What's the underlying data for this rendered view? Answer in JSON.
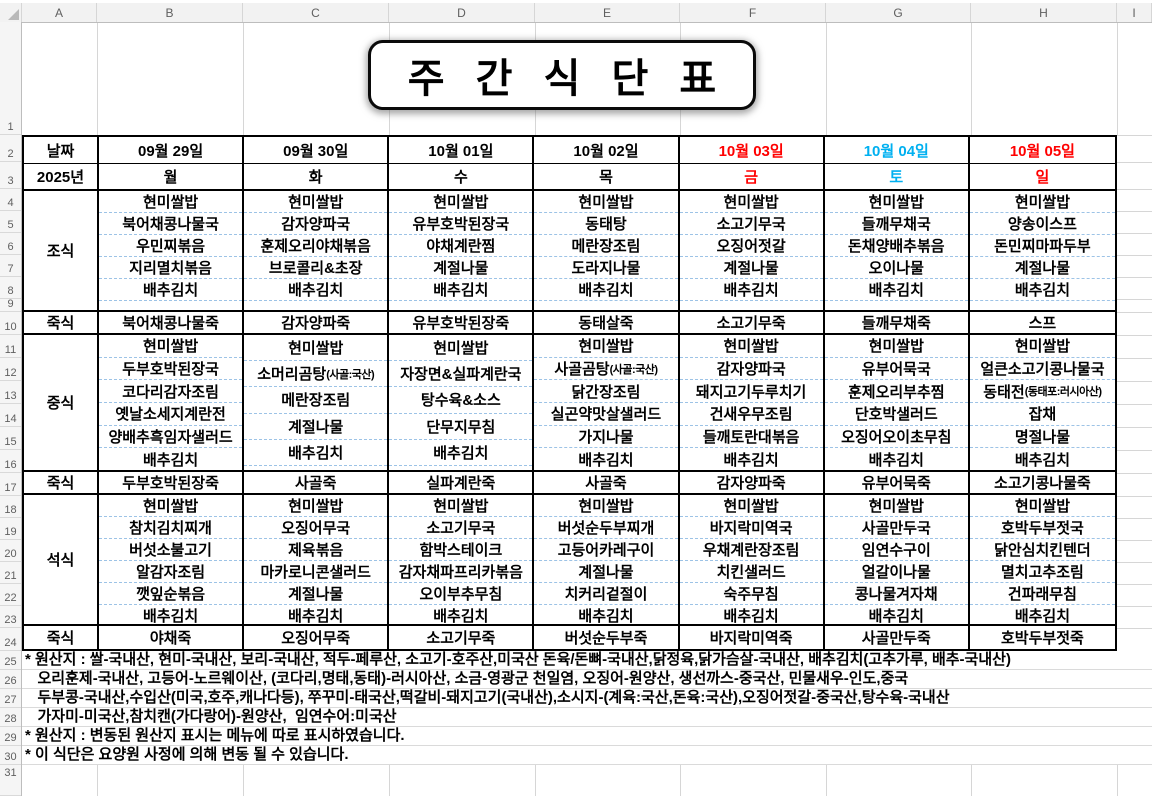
{
  "spreadsheet": {
    "column_letters": [
      "A",
      "B",
      "C",
      "D",
      "E",
      "F",
      "G",
      "H",
      "I"
    ],
    "row_numbers": [
      "1",
      "2",
      "3",
      "4",
      "5",
      "6",
      "7",
      "8",
      "9",
      "10",
      "11",
      "12",
      "13",
      "14",
      "15",
      "16",
      "17",
      "18",
      "19",
      "20",
      "21",
      "22",
      "23",
      "24",
      "25",
      "26",
      "27",
      "28",
      "29",
      "30",
      "31"
    ]
  },
  "title": "주 간 식 단 표",
  "header": {
    "date_label": "날짜",
    "year_label": "2025년"
  },
  "section_labels": {
    "breakfast": "조식",
    "porridge": "죽식",
    "lunch": "중식",
    "dinner": "석식"
  },
  "colors": {
    "weekday_text": "#000000",
    "holiday_red": "#ff0000",
    "saturday_blue": "#00b0f0",
    "dashed_divider": "#9dc3e6",
    "gridline": "#d6d6d6"
  },
  "days": [
    {
      "date": "09월 29일",
      "dow": "월",
      "color": "#000000",
      "breakfast": [
        "현미쌀밥",
        "북어채콩나물국",
        "우민찌볶음",
        "지리멸치볶음",
        "배추김치"
      ],
      "breakfast_porridge": "북어채콩나물죽",
      "lunch": [
        "현미쌀밥",
        "두부호박된장국",
        "코다리감자조림",
        "옛날소세지계란전",
        "양배추흑임자샐러드",
        "배추김치"
      ],
      "lunch_porridge": "두부호박된장죽",
      "dinner": [
        "현미쌀밥",
        "참치김치찌개",
        "버섯소불고기",
        "알감자조림",
        "깻잎순볶음",
        "배추김치"
      ],
      "dinner_porridge": "야채죽"
    },
    {
      "date": "09월 30일",
      "dow": "화",
      "color": "#000000",
      "breakfast": [
        "현미쌀밥",
        "감자양파국",
        "훈제오리야채볶음",
        "브로콜리&초장",
        "배추김치"
      ],
      "breakfast_porridge": "감자양파죽",
      "lunch": [
        "현미쌀밥",
        "소머리곰탕(사골:국산)",
        "메란장조림",
        "계절나물",
        "배추김치"
      ],
      "lunch_porridge": "사골죽",
      "dinner": [
        "현미쌀밥",
        "오징어무국",
        "제육볶음",
        "마카로니콘샐러드",
        "계절나물",
        "배추김치"
      ],
      "dinner_porridge": "오징어무죽"
    },
    {
      "date": "10월 01일",
      "dow": "수",
      "color": "#000000",
      "breakfast": [
        "현미쌀밥",
        "유부호박된장국",
        "야채계란찜",
        "계절나물",
        "배추김치"
      ],
      "breakfast_porridge": "유부호박된장죽",
      "lunch": [
        "현미쌀밥",
        "자장면&실파계란국",
        "탕수육&소스",
        "단무지무침",
        "배추김치"
      ],
      "lunch_porridge": "실파계란죽",
      "dinner": [
        "현미쌀밥",
        "소고기무국",
        "함박스테이크",
        "감자채파프리카볶음",
        "오이부추무침",
        "배추김치"
      ],
      "dinner_porridge": "소고기무죽"
    },
    {
      "date": "10월 02일",
      "dow": "목",
      "color": "#000000",
      "breakfast": [
        "현미쌀밥",
        "동태탕",
        "메란장조림",
        "도라지나물",
        "배추김치"
      ],
      "breakfast_porridge": "동태살죽",
      "lunch": [
        "현미쌀밥",
        "사골곰탕(사골:국산)",
        "닭간장조림",
        "실곤약맛살샐러드",
        "가지나물",
        "배추김치"
      ],
      "lunch_porridge": "사골죽",
      "dinner": [
        "현미쌀밥",
        "버섯순두부찌개",
        "고등어카레구이",
        "계절나물",
        "치커리겉절이",
        "배추김치"
      ],
      "dinner_porridge": "버섯순두부죽"
    },
    {
      "date": "10월 03일",
      "dow": "금",
      "color": "#ff0000",
      "breakfast": [
        "현미쌀밥",
        "소고기무국",
        "오징어젓갈",
        "계절나물",
        "배추김치"
      ],
      "breakfast_porridge": "소고기무죽",
      "lunch": [
        "현미쌀밥",
        "감자양파국",
        "돼지고기두루치기",
        "건새우무조림",
        "들깨토란대볶음",
        "배추김치"
      ],
      "lunch_porridge": "감자양파죽",
      "dinner": [
        "현미쌀밥",
        "바지락미역국",
        "우채계란장조림",
        "치킨샐러드",
        "숙주무침",
        "배추김치"
      ],
      "dinner_porridge": "바지락미역죽"
    },
    {
      "date": "10월 04일",
      "dow": "토",
      "color": "#00b0f0",
      "breakfast": [
        "현미쌀밥",
        "들깨무채국",
        "돈채양배추볶음",
        "오이나물",
        "배추김치"
      ],
      "breakfast_porridge": "들깨무채죽",
      "lunch": [
        "현미쌀밥",
        "유부어묵국",
        "훈제오리부추찜",
        "단호박샐러드",
        "오징어오이초무침",
        "배추김치"
      ],
      "lunch_porridge": "유부어묵죽",
      "dinner": [
        "현미쌀밥",
        "사골만두국",
        "임연수구이",
        "얼갈이나물",
        "콩나물겨자채",
        "배추김치"
      ],
      "dinner_porridge": "사골만두죽"
    },
    {
      "date": "10월 05일",
      "dow": "일",
      "color": "#ff0000",
      "breakfast": [
        "현미쌀밥",
        "양송이스프",
        "돈민찌마파두부",
        "계절나물",
        "배추김치"
      ],
      "breakfast_porridge": "스프",
      "lunch": [
        "현미쌀밥",
        "얼큰소고기콩나물국",
        "동태전(동태포:러시아산)",
        "잡채",
        "명절나물",
        "배추김치"
      ],
      "lunch_porridge": "소고기콩나물죽",
      "dinner": [
        "현미쌀밥",
        "호박두부젓국",
        "닭안심치킨텐더",
        "멸치고추조림",
        "건파래무침",
        "배추김치"
      ],
      "dinner_porridge": "호박두부젓죽"
    }
  ],
  "notes": [
    "* 원산지 : 쌀-국내산, 현미-국내산, 보리-국내산, 적두-페루산, 소고기-호주산,미국산 돈육/돈뼈-국내산,닭정육,닭가슴살-국내산, 배추김치(고추가루, 배추-국내산)",
    "   오리훈제-국내산, 고등어-노르웨이산, (코다리,명태,동태)-러시아산, 소금-영광군 천일염, 오징어-원양산, 생선까스-중국산, 민물새우-인도,중국",
    "   두부콩-국내산,수입산(미국,호주,캐나다등), 쭈꾸미-태국산,떡갈비-돼지고기(국내산),소시지-(계육:국산,돈육:국산),오징어젓갈-중국산,탕수육-국내산",
    "   가자미-미국산,참치캔(가다랑어)-원양산,  임연수어:미국산",
    "* 원산지 : 변동된 원산지 표시는 메뉴에 따로 표시하였습니다.",
    "* 이 식단은 요양원 사정에 의해 변동 될 수 있습니다."
  ]
}
